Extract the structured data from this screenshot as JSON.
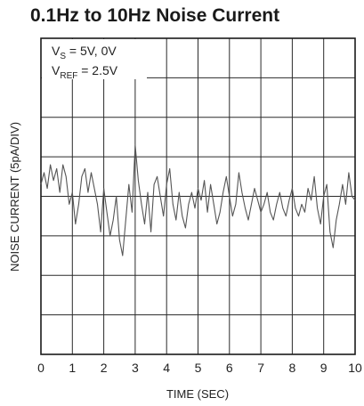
{
  "chart_data": {
    "type": "line",
    "title": "0.1Hz to 10Hz Noise Current",
    "xlabel": "TIME (SEC)",
    "ylabel": "NOISE CURRENT (5pA/DIV)",
    "xlim": [
      0,
      10
    ],
    "ylim": [
      -20,
      20
    ],
    "x_ticks": [
      "0",
      "1",
      "2",
      "3",
      "4",
      "5",
      "6",
      "7",
      "8",
      "9",
      "10"
    ],
    "grid": true,
    "annotations": [
      {
        "main": "V",
        "sub": "S",
        "rest": " = 5V, 0V"
      },
      {
        "main": "V",
        "sub": "REF",
        "rest": " = 2.5V"
      }
    ],
    "series": [
      {
        "x": [
          0.0,
          0.1,
          0.2,
          0.3,
          0.4,
          0.5,
          0.6,
          0.7,
          0.8,
          0.9,
          1.0,
          1.1,
          1.2,
          1.3,
          1.4,
          1.5,
          1.6,
          1.7,
          1.8,
          1.9,
          2.0,
          2.1,
          2.2,
          2.3,
          2.4,
          2.5,
          2.6,
          2.7,
          2.8,
          2.9,
          3.0,
          3.1,
          3.2,
          3.3,
          3.4,
          3.5,
          3.6,
          3.7,
          3.8,
          3.9,
          4.0,
          4.1,
          4.2,
          4.3,
          4.4,
          4.5,
          4.6,
          4.7,
          4.8,
          4.9,
          5.0,
          5.1,
          5.2,
          5.3,
          5.4,
          5.5,
          5.6,
          5.7,
          5.8,
          5.9,
          6.0,
          6.1,
          6.2,
          6.3,
          6.4,
          6.5,
          6.6,
          6.7,
          6.8,
          6.9,
          7.0,
          7.1,
          7.2,
          7.3,
          7.4,
          7.5,
          7.6,
          7.7,
          7.8,
          7.9,
          8.0,
          8.1,
          8.2,
          8.3,
          8.4,
          8.5,
          8.6,
          8.7,
          8.8,
          8.9,
          9.0,
          9.1,
          9.2,
          9.3,
          9.4,
          9.5,
          9.6,
          9.7,
          9.8,
          9.9,
          10.0
        ],
        "values": [
          1.5,
          3.0,
          1.0,
          4.0,
          2.0,
          3.5,
          0.5,
          4.0,
          2.5,
          -1.0,
          0.5,
          -3.5,
          -1.0,
          2.5,
          3.5,
          0.5,
          3.0,
          1.0,
          -1.0,
          -4.5,
          1.0,
          -2.0,
          -5.0,
          -3.0,
          0.0,
          -5.5,
          -7.5,
          -3.0,
          1.5,
          -2.0,
          6.5,
          2.0,
          -1.0,
          -3.5,
          0.5,
          -4.5,
          1.5,
          2.5,
          0.0,
          -2.5,
          1.5,
          3.5,
          -1.0,
          -3.0,
          0.5,
          -2.5,
          -4.0,
          -1.0,
          0.5,
          -1.5,
          1.0,
          -0.5,
          2.0,
          -2.0,
          1.5,
          -1.0,
          -3.5,
          -2.0,
          0.5,
          2.5,
          0.0,
          -2.5,
          -1.0,
          3.0,
          0.5,
          -1.5,
          -3.0,
          -1.0,
          1.0,
          -0.5,
          -2.0,
          -1.0,
          0.5,
          -2.0,
          -3.0,
          -1.0,
          0.5,
          -1.5,
          -2.5,
          -0.5,
          1.0,
          -1.5,
          -2.5,
          -1.0,
          -2.0,
          1.0,
          -0.5,
          2.5,
          -1.5,
          -3.5,
          0.0,
          1.5,
          -4.5,
          -6.5,
          -3.0,
          -1.0,
          1.5,
          -1.0,
          3.0,
          0.0,
          -0.5
        ]
      }
    ]
  }
}
